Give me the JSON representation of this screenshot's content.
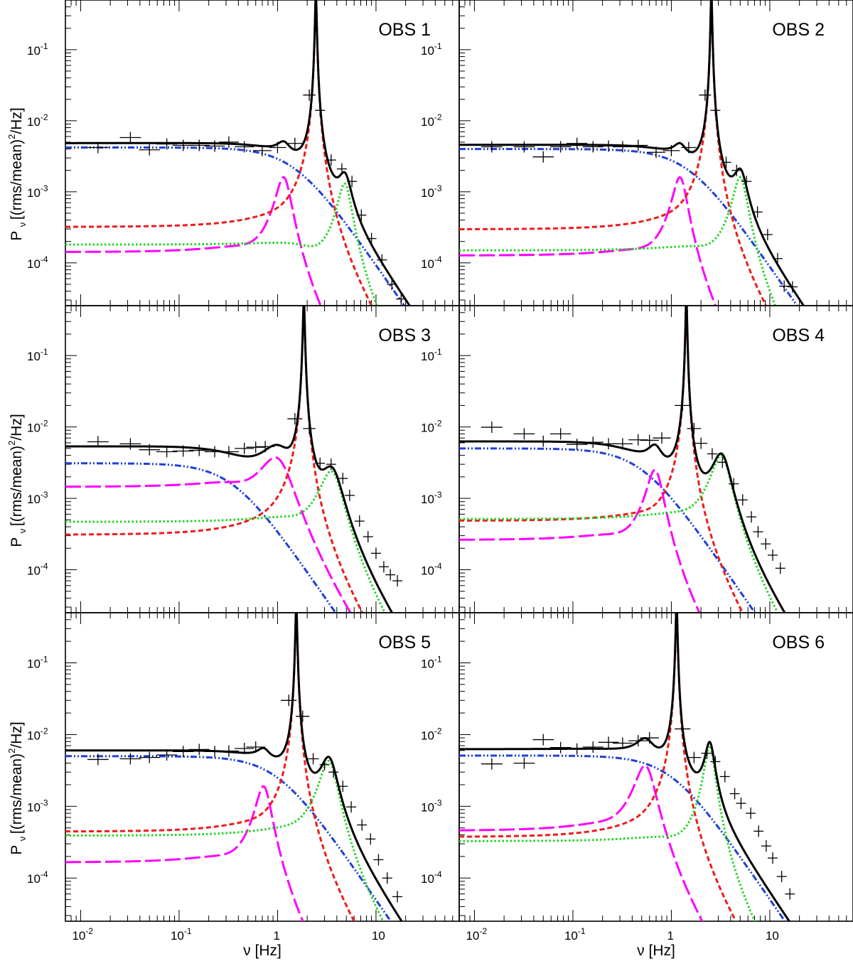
{
  "chart_data": {
    "type": "line",
    "figure_title": "",
    "xlabel": "ν [Hz]",
    "ylabel_symbol": "P",
    "ylabel_subscript": "ν",
    "ylabel_units": "[(rms/mean)",
    "ylabel_units_power": "2",
    "ylabel_units_tail": "/Hz]",
    "xscale": "log",
    "yscale": "log",
    "xlim": [
      0.007,
      70
    ],
    "ylim": [
      2.5e-05,
      0.5
    ],
    "x_tick_labels": [
      {
        "value": 0.01,
        "base": "10",
        "exp": "-2"
      },
      {
        "value": 0.1,
        "base": "10",
        "exp": "-1"
      },
      {
        "value": 1,
        "base": "1",
        "exp": ""
      },
      {
        "value": 10,
        "base": "10",
        "exp": ""
      }
    ],
    "y_tick_labels": [
      {
        "value": 0.1,
        "base": "10",
        "exp": "-1"
      },
      {
        "value": 0.01,
        "base": "10",
        "exp": "-2"
      },
      {
        "value": 0.001,
        "base": "10",
        "exp": "-3"
      },
      {
        "value": 0.0001,
        "base": "10",
        "exp": "-4"
      }
    ],
    "component_styles": [
      {
        "name": "broad-noise",
        "color": "#1f3fdc",
        "dash": "9 3 2 3 2 3"
      },
      {
        "name": "qpo-subharmonic",
        "color": "#ff00ff",
        "dash": "22 6"
      },
      {
        "name": "qpo-fundamental",
        "color": "#ee1c1c",
        "dash": "7 4"
      },
      {
        "name": "qpo-harmonic",
        "color": "#22d422",
        "dash": "2.5 3"
      }
    ],
    "total_color": "#000000",
    "panels": [
      {
        "label": "OBS 1",
        "components": [
          {
            "norm": 0.0042,
            "center": 0,
            "width": 1.5
          },
          {
            "norm": 0.0016,
            "center": 1.15,
            "width": 0.4,
            "base": 9.5e-05
          },
          {
            "norm": 0.6,
            "center": 2.45,
            "width": 0.085,
            "base": 0.00014
          },
          {
            "norm": 0.0013,
            "center": 4.8,
            "width": 1.5,
            "base": 0.00015
          }
        ],
        "data_points": [
          [
            0.015,
            0.0042
          ],
          [
            0.032,
            0.0058
          ],
          [
            0.05,
            0.0039
          ],
          [
            0.075,
            0.0047
          ],
          [
            0.11,
            0.0045
          ],
          [
            0.16,
            0.0045
          ],
          [
            0.23,
            0.0044
          ],
          [
            0.32,
            0.005
          ],
          [
            0.46,
            0.0043
          ],
          [
            0.7,
            0.0038
          ],
          [
            1.0,
            0.0042
          ],
          [
            1.5,
            0.0048
          ],
          [
            2.1,
            0.023
          ],
          [
            2.7,
            0.014
          ],
          [
            3.5,
            0.0028
          ],
          [
            4.5,
            0.0021
          ],
          [
            5.7,
            0.0014
          ],
          [
            7.1,
            0.00047
          ],
          [
            9.0,
            0.00022
          ],
          [
            11.5,
            0.00011
          ],
          [
            14.5,
            5e-05
          ],
          [
            18.0,
            3.1e-05
          ]
        ]
      },
      {
        "label": "OBS 2",
        "components": [
          {
            "norm": 0.004,
            "center": 0,
            "width": 1.5
          },
          {
            "norm": 0.0016,
            "center": 1.22,
            "width": 0.4,
            "base": 8.5e-05
          },
          {
            "norm": 0.6,
            "center": 2.55,
            "width": 0.085,
            "base": 0.00013
          },
          {
            "norm": 0.0016,
            "center": 5.0,
            "width": 1.6,
            "base": 0.00011
          }
        ],
        "data_points": [
          [
            0.015,
            0.0043
          ],
          [
            0.032,
            0.0043
          ],
          [
            0.05,
            0.0031
          ],
          [
            0.075,
            0.0043
          ],
          [
            0.11,
            0.0048
          ],
          [
            0.16,
            0.0043
          ],
          [
            0.23,
            0.0044
          ],
          [
            0.32,
            0.0043
          ],
          [
            0.46,
            0.0045
          ],
          [
            0.7,
            0.0036
          ],
          [
            1.0,
            0.0038
          ],
          [
            1.5,
            0.0042
          ],
          [
            2.2,
            0.023
          ],
          [
            2.8,
            0.014
          ],
          [
            3.6,
            0.0026
          ],
          [
            4.6,
            0.002
          ],
          [
            5.8,
            0.0014
          ],
          [
            7.5,
            0.00052
          ],
          [
            9.5,
            0.00025
          ],
          [
            12.0,
            0.000115
          ],
          [
            14.0,
            4.7e-05
          ],
          [
            17.0,
            4.6e-05
          ]
        ]
      },
      {
        "label": "OBS 3",
        "components": [
          {
            "norm": 0.0031,
            "center": 0,
            "width": 0.35
          },
          {
            "norm": 0.0037,
            "center": 0.95,
            "width": 0.75,
            "base": 0.00095
          },
          {
            "norm": 0.6,
            "center": 1.85,
            "width": 0.07,
            "base": 9.5e-05
          },
          {
            "norm": 0.0024,
            "center": 3.5,
            "width": 1.8,
            "base": 0.00032
          }
        ],
        "data_points": [
          [
            0.015,
            0.0062
          ],
          [
            0.032,
            0.0058
          ],
          [
            0.05,
            0.0048
          ],
          [
            0.075,
            0.0045
          ],
          [
            0.11,
            0.0046
          ],
          [
            0.16,
            0.0047
          ],
          [
            0.23,
            0.0045
          ],
          [
            0.32,
            0.0045
          ],
          [
            0.46,
            0.005
          ],
          [
            0.6,
            0.0052
          ],
          [
            0.75,
            0.0053
          ],
          [
            1.5,
            0.013
          ],
          [
            2.1,
            0.0095
          ],
          [
            2.7,
            0.0031
          ],
          [
            3.5,
            0.003
          ],
          [
            4.6,
            0.0019
          ],
          [
            5.4,
            0.0011
          ],
          [
            6.8,
            0.00048
          ],
          [
            8.3,
            0.00029
          ],
          [
            10.0,
            0.00017
          ],
          [
            12.0,
            0.00011
          ],
          [
            14.0,
            8.5e-05
          ],
          [
            16.5,
            7e-05
          ]
        ]
      },
      {
        "label": "OBS 4",
        "components": [
          {
            "norm": 0.005,
            "center": 0,
            "width": 0.5
          },
          {
            "norm": 0.0025,
            "center": 0.68,
            "width": 0.25,
            "base": 0.00018
          },
          {
            "norm": 0.65,
            "center": 1.42,
            "width": 0.048,
            "base": 0.0003
          },
          {
            "norm": 0.004,
            "center": 3.2,
            "width": 1.4,
            "base": 0.00033
          }
        ],
        "data_points": [
          [
            0.015,
            0.0099
          ],
          [
            0.032,
            0.008
          ],
          [
            0.05,
            0.0063
          ],
          [
            0.075,
            0.008
          ],
          [
            0.11,
            0.0057
          ],
          [
            0.16,
            0.0061
          ],
          [
            0.23,
            0.0058
          ],
          [
            0.32,
            0.0058
          ],
          [
            0.46,
            0.0066
          ],
          [
            0.6,
            0.0065
          ],
          [
            0.8,
            0.007
          ],
          [
            1.3,
            0.02
          ],
          [
            1.7,
            0.0095
          ],
          [
            2.0,
            0.0059
          ],
          [
            2.6,
            0.0042
          ],
          [
            3.3,
            0.0032
          ],
          [
            4.3,
            0.0016
          ],
          [
            5.3,
            0.00095
          ],
          [
            6.5,
            0.00055
          ],
          [
            7.6,
            0.00034
          ],
          [
            9.1,
            0.00023
          ],
          [
            10.7,
            0.00016
          ],
          [
            12.8,
            0.000105
          ]
        ]
      },
      {
        "label": "OBS 5",
        "components": [
          {
            "norm": 0.005,
            "center": 0,
            "width": 1.0
          },
          {
            "norm": 0.0019,
            "center": 0.72,
            "width": 0.25,
            "base": 0.00011
          },
          {
            "norm": 0.65,
            "center": 1.55,
            "width": 0.055,
            "base": 0.00024
          },
          {
            "norm": 0.0043,
            "center": 3.3,
            "width": 1.3,
            "base": 0.00023
          }
        ],
        "data_points": [
          [
            0.015,
            0.0045
          ],
          [
            0.032,
            0.0046
          ],
          [
            0.05,
            0.0048
          ],
          [
            0.075,
            0.0052
          ],
          [
            0.11,
            0.0058
          ],
          [
            0.16,
            0.0062
          ],
          [
            0.23,
            0.0058
          ],
          [
            0.32,
            0.0059
          ],
          [
            0.46,
            0.0064
          ],
          [
            0.6,
            0.0067
          ],
          [
            1.3,
            0.03
          ],
          [
            1.8,
            0.018
          ],
          [
            2.3,
            0.0046
          ],
          [
            3.0,
            0.0038
          ],
          [
            3.7,
            0.003
          ],
          [
            4.6,
            0.0019
          ],
          [
            5.6,
            0.00098
          ],
          [
            7.2,
            0.00055
          ],
          [
            8.8,
            0.00035
          ],
          [
            10.6,
            0.00018
          ],
          [
            13.0,
            0.0001
          ],
          [
            16.5,
            5.5e-05
          ]
        ]
      },
      {
        "label": "OBS 6",
        "components": [
          {
            "norm": 0.0051,
            "center": 0,
            "width": 1.0
          },
          {
            "norm": 0.0037,
            "center": 0.54,
            "width": 0.25,
            "base": 0.00027
          },
          {
            "norm": 0.65,
            "center": 1.13,
            "width": 0.042,
            "base": 0.00015
          },
          {
            "norm": 0.007,
            "center": 2.45,
            "width": 0.55,
            "base": 0.00024
          }
        ],
        "data_points": [
          [
            0.015,
            0.0039
          ],
          [
            0.032,
            0.004
          ],
          [
            0.05,
            0.0085
          ],
          [
            0.075,
            0.0066
          ],
          [
            0.11,
            0.0063
          ],
          [
            0.16,
            0.0067
          ],
          [
            0.23,
            0.0078
          ],
          [
            0.32,
            0.0076
          ],
          [
            0.46,
            0.0082
          ],
          [
            0.6,
            0.009
          ],
          [
            1.3,
            0.012
          ],
          [
            1.7,
            0.0048
          ],
          [
            2.3,
            0.0055
          ],
          [
            2.8,
            0.0042
          ],
          [
            3.5,
            0.0026
          ],
          [
            4.4,
            0.0015
          ],
          [
            5.1,
            0.0011
          ],
          [
            6.4,
            0.0008
          ],
          [
            7.7,
            0.00045
          ],
          [
            9.2,
            0.00028
          ],
          [
            10.7,
            0.00019
          ],
          [
            13.2,
            0.000105
          ],
          [
            16.0,
            6e-05
          ]
        ]
      }
    ]
  }
}
